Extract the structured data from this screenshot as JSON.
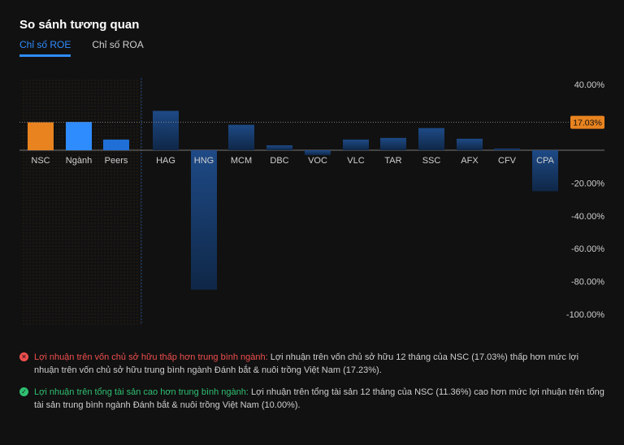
{
  "header": {
    "title": "So sánh tương quan"
  },
  "tabs": [
    {
      "label": "Chỉ số ROE",
      "active": true
    },
    {
      "label": "Chỉ số ROA",
      "active": false
    }
  ],
  "chart_data": {
    "type": "bar",
    "categories": [
      "NSC",
      "Ngành",
      "Peers",
      "HAG",
      "HNG",
      "MCM",
      "DBC",
      "VOC",
      "VLC",
      "TAR",
      "SSC",
      "AFX",
      "CFV",
      "CPA"
    ],
    "values": [
      17.03,
      17.23,
      6.5,
      24.0,
      -85.0,
      15.5,
      3.0,
      -3.0,
      6.5,
      7.5,
      13.5,
      7.0,
      1.0,
      -25.0
    ],
    "colors": [
      "#e8831f",
      "#2f8cff",
      "#1f6fd6",
      "#1b3f73",
      "#1b3f73",
      "#1b3f73",
      "#1b3f73",
      "#1b3f73",
      "#1b3f73",
      "#1b3f73",
      "#1b3f73",
      "#1b3f73",
      "#1b3f73",
      "#1b3f73"
    ],
    "yticks": [
      40,
      -20,
      -40,
      -60,
      -80,
      -100
    ],
    "ytick_labels": [
      "40.00%",
      "-20.00%",
      "-40.00%",
      "-60.00%",
      "-80.00%",
      "-100.00%"
    ],
    "ylim": [
      -100,
      40
    ],
    "reference_line": {
      "value": 17.03,
      "label": "17.03%",
      "color": "#e8831f"
    },
    "highlight_group": [
      "NSC",
      "Ngành",
      "Peers"
    ]
  },
  "notes": [
    {
      "status": "bad",
      "headline": "Lợi nhuận trên vốn chủ sở hữu thấp hơn trung bình ngành:",
      "text": " Lợi nhuận trên vốn chủ sở hữu 12 tháng của NSC (17.03%) thấp hơn mức lợi nhuận trên vốn chủ sở hữu trung bình ngành Đánh bắt & nuôi trồng Việt Nam (17.23%)."
    },
    {
      "status": "good",
      "headline": "Lợi nhuận trên tổng tài sản cao hơn trung bình ngành:",
      "text": " Lợi nhuận trên tổng tài sản 12 tháng của NSC (11.36%) cao hơn mức lợi nhuận trên tổng tài sản trung bình ngành Đánh bắt & nuôi trồng Việt Nam (10.00%)."
    }
  ],
  "icons": {
    "bad": "close-circle-icon",
    "good": "check-circle-icon"
  }
}
